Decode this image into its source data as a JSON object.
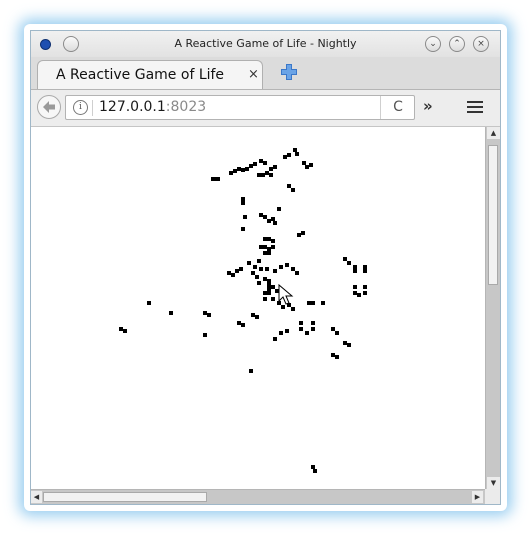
{
  "window": {
    "title": "A Reactive Game of Life - Nightly"
  },
  "tab": {
    "label": "A Reactive Game of Life",
    "close_glyph": "×"
  },
  "navbar": {
    "url_host": "127.0.0.1",
    "url_port": ":8023",
    "reload_glyph": "C",
    "overflow_glyph": "»",
    "info_glyph": "i"
  },
  "controls": {
    "minimize_glyph": "⌄",
    "maximize_glyph": "⌃",
    "close_glyph": "×"
  },
  "colors": {
    "cell": "#000000",
    "accent": "#1e4fb0",
    "new_tab": "#3b78c9"
  }
}
